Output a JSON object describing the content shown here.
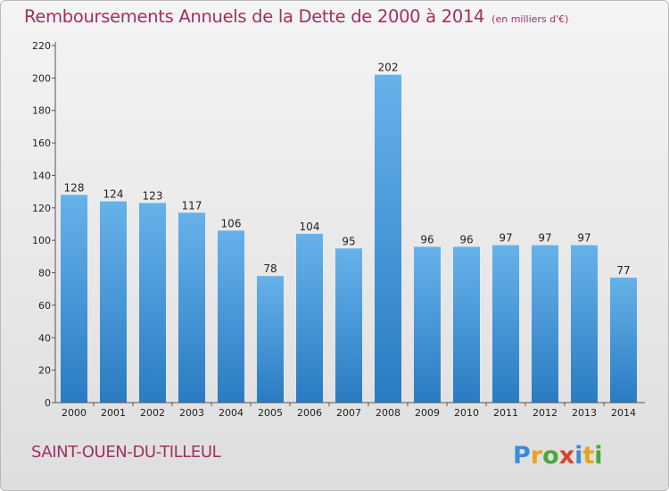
{
  "header": {
    "title": "Remboursements Annuels de la Dette de 2000 à 2014",
    "subtitle": "(en milliers d'€)"
  },
  "footer": {
    "city": "SAINT-OUEN-DU-TILLEUL",
    "logo_text": "Proxiti"
  },
  "colors": {
    "title": "#a03063",
    "bar_top": "#66b2ea",
    "bar_bottom": "#2a7bc2",
    "axis": "#555555"
  },
  "chart_data": {
    "type": "bar",
    "title": "Remboursements Annuels de la Dette de 2000 à 2014",
    "subtitle": "(en milliers d'€)",
    "categories": [
      "2000",
      "2001",
      "2002",
      "2003",
      "2004",
      "2005",
      "2006",
      "2007",
      "2008",
      "2009",
      "2010",
      "2011",
      "2012",
      "2013",
      "2014"
    ],
    "values": [
      128,
      124,
      123,
      117,
      106,
      78,
      104,
      95,
      202,
      96,
      96,
      97,
      97,
      97,
      77
    ],
    "ylim": [
      0,
      220
    ],
    "yticks": [
      0,
      20,
      40,
      60,
      80,
      100,
      120,
      140,
      160,
      180,
      200,
      220
    ],
    "grid": false,
    "data_labels": true
  }
}
